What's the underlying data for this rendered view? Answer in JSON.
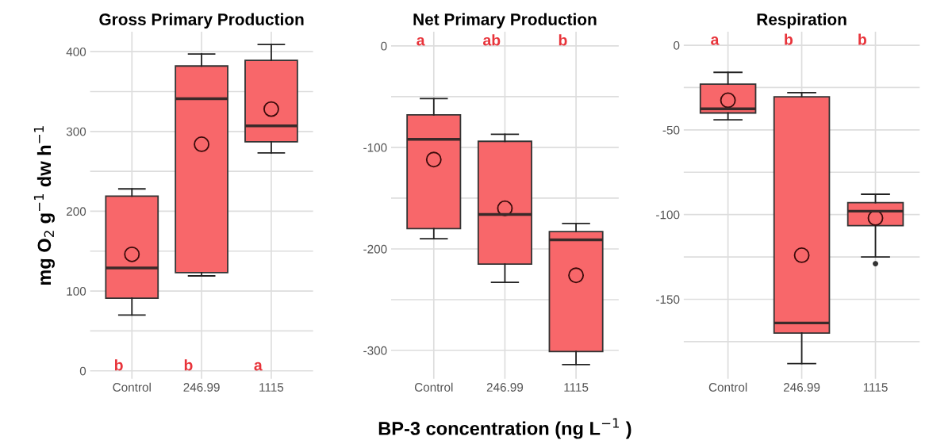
{
  "chart_data": [
    {
      "type": "box",
      "title": "Gross Primary Production",
      "ylabel": "mg O$_{2}$ g$^{−1}$ dw h$^{−1}$",
      "categories": [
        "Control",
        "246.99",
        "1115"
      ],
      "color": "#f8676a",
      "grid": true,
      "marker": "circle",
      "ylim": [
        -10,
        425
      ],
      "yticks": [
        0,
        {
          "value": 50,
          "label": null
        },
        100,
        {
          "value": 150,
          "label": null
        },
        200,
        {
          "value": 250,
          "label": null
        },
        300,
        {
          "value": 350,
          "label": null
        },
        400
      ],
      "boxes": [
        {
          "low": 70,
          "q1": 91,
          "median": 129,
          "q3": 219,
          "high": 228,
          "mean": 146
        },
        {
          "low": 119,
          "q1": 123,
          "median": 341,
          "q3": 382,
          "high": 397,
          "mean": 284
        },
        {
          "low": 273,
          "q1": 287,
          "median": 307,
          "q3": 389,
          "high": 409,
          "mean": 328
        }
      ],
      "annotations": [
        "b",
        "b",
        "a"
      ]
    },
    {
      "type": "box",
      "title": "Net Primary Production",
      "xlabel": "BP-3 concentration (ng L$^{−1}$ )",
      "categories": [
        "Control",
        "246.99",
        "1115"
      ],
      "color": "#f8676a",
      "grid": true,
      "marker": "circle",
      "ylim": [
        -328,
        14
      ],
      "yticks": [
        0,
        {
          "value": -50,
          "label": null
        },
        -100,
        {
          "value": -150,
          "label": null
        },
        -200,
        {
          "value": -250,
          "label": null
        },
        -300
      ],
      "boxes": [
        {
          "low": -190,
          "q1": -180,
          "median": -92,
          "q3": -68,
          "high": -52,
          "mean": -112
        },
        {
          "low": -233,
          "q1": -215,
          "median": -166,
          "q3": -94,
          "high": -87,
          "mean": -160
        },
        {
          "low": -314,
          "q1": -301,
          "median": -191,
          "q3": -183,
          "high": -175,
          "mean": -226
        }
      ],
      "annotations": [
        "a",
        "ab",
        "b"
      ]
    },
    {
      "type": "box",
      "title": "Respiration",
      "categories": [
        "Control",
        "246.99",
        "1115"
      ],
      "color": "#f8676a",
      "grid": true,
      "marker": "circle",
      "ylim": [
        -197,
        8
      ],
      "yticks": [
        0,
        {
          "value": -25,
          "label": null
        },
        -50,
        {
          "value": -75,
          "label": null
        },
        -100,
        {
          "value": -125,
          "label": null
        },
        -150,
        {
          "value": -175,
          "label": null
        }
      ],
      "boxes": [
        {
          "low": -44,
          "q1": -40,
          "median": -37.5,
          "q3": -23,
          "high": -16,
          "mean": -32.5
        },
        {
          "low": -188,
          "q1": -170,
          "median": -164,
          "q3": -30.5,
          "high": -28,
          "mean": -124
        },
        {
          "low": -125,
          "q1": -106.5,
          "median": -98,
          "q3": -93,
          "high": -88,
          "mean": -102,
          "outliers": [
            -129
          ]
        }
      ],
      "annotations": [
        "a",
        "b",
        "b"
      ]
    }
  ]
}
